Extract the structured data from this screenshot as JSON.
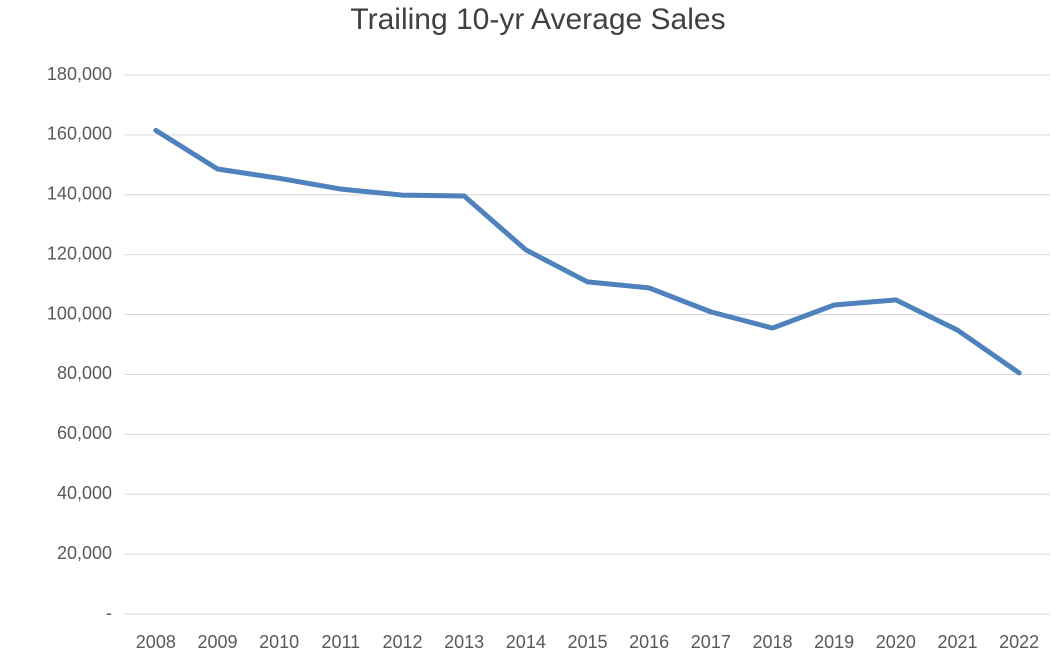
{
  "chart_data": {
    "type": "line",
    "title": "Trailing 10-yr Average Sales",
    "categories": [
      "2008",
      "2009",
      "2010",
      "2011",
      "2012",
      "2013",
      "2014",
      "2015",
      "2016",
      "2017",
      "2018",
      "2019",
      "2020",
      "2021",
      "2022"
    ],
    "series": [
      {
        "name": "Trailing 10-yr Average Sales",
        "color": "#4f81bd",
        "values": [
          161500,
          148600,
          145500,
          141900,
          139900,
          139600,
          121600,
          110900,
          108900,
          100900,
          95500,
          103200,
          104900,
          94800,
          80500
        ]
      }
    ],
    "ylim": [
      0,
      180000
    ],
    "yticks": [
      {
        "value": 0,
        "label": "-"
      },
      {
        "value": 20000,
        "label": "20,000"
      },
      {
        "value": 40000,
        "label": "40,000"
      },
      {
        "value": 60000,
        "label": "60,000"
      },
      {
        "value": 80000,
        "label": "80,000"
      },
      {
        "value": 100000,
        "label": "100,000"
      },
      {
        "value": 120000,
        "label": "120,000"
      },
      {
        "value": 140000,
        "label": "140,000"
      },
      {
        "value": 160000,
        "label": "160,000"
      },
      {
        "value": 180000,
        "label": "180,000"
      }
    ],
    "grid": true
  }
}
